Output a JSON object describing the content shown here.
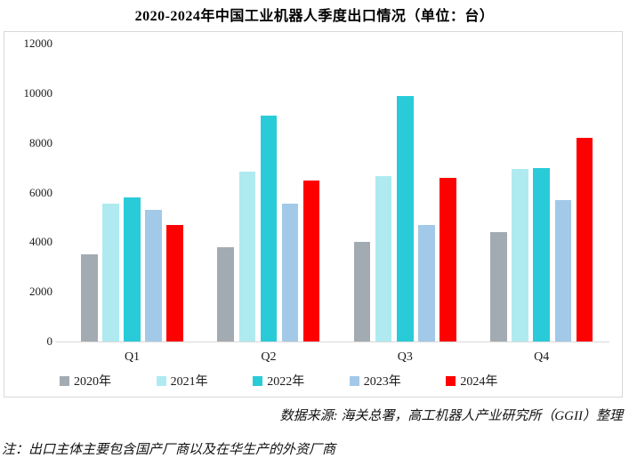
{
  "title": "2020-2024年中国工业机器人季度出口情况（单位：台）",
  "chart_data": {
    "type": "bar",
    "categories": [
      "Q1",
      "Q2",
      "Q3",
      "Q4"
    ],
    "series": [
      {
        "name": "2020年",
        "color": "#a3abb2",
        "values": [
          3500,
          3800,
          4000,
          4400
        ]
      },
      {
        "name": "2021年",
        "color": "#aeeaf0",
        "values": [
          5550,
          6850,
          6650,
          6950
        ]
      },
      {
        "name": "2022年",
        "color": "#29cbd8",
        "values": [
          5800,
          9100,
          9900,
          7000
        ]
      },
      {
        "name": "2023年",
        "color": "#a3c9e8",
        "values": [
          5300,
          5550,
          4700,
          5700
        ]
      },
      {
        "name": "2024年",
        "color": "#fd0000",
        "values": [
          4700,
          6500,
          6600,
          8200
        ]
      }
    ],
    "title": "2020-2024年中国工业机器人季度出口情况（单位：台）",
    "xlabel": "",
    "ylabel": "",
    "ylim": [
      0,
      12000
    ],
    "yticks": [
      0,
      2000,
      4000,
      6000,
      8000,
      10000,
      12000
    ],
    "grid": false,
    "legend_position": "bottom"
  },
  "footer": {
    "source": "数据来源: 海关总署，高工机器人产业研究所（GGII）整理",
    "note": "注：出口主体主要包含国产厂商以及在华生产的外资厂商"
  }
}
